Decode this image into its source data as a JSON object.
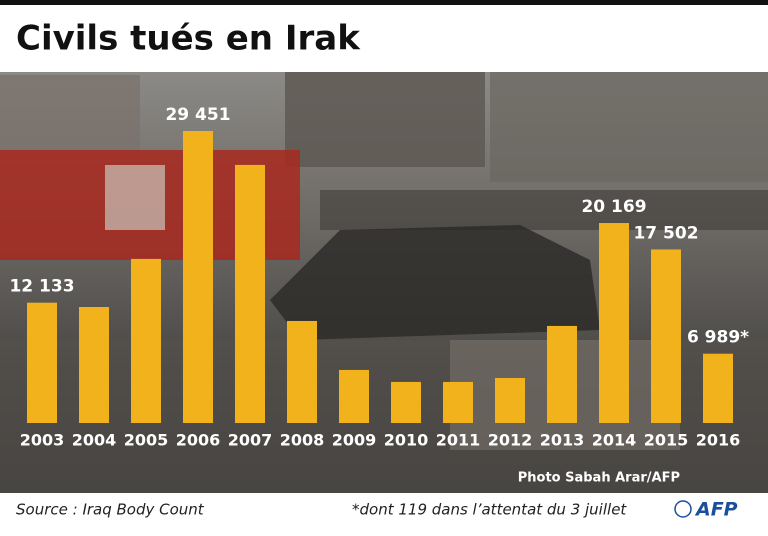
{
  "chart_data": {
    "type": "bar",
    "title": "Civils tués en Irak",
    "categories": [
      "2003",
      "2004",
      "2005",
      "2006",
      "2007",
      "2008",
      "2009",
      "2010",
      "2011",
      "2012",
      "2013",
      "2014",
      "2015",
      "2016"
    ],
    "values": [
      12133,
      11700,
      16550,
      29451,
      26030,
      10290,
      5350,
      4140,
      4140,
      4540,
      9790,
      20169,
      17502,
      6989
    ],
    "value_labels": [
      "12 133",
      null,
      null,
      "29 451",
      null,
      null,
      null,
      null,
      null,
      null,
      null,
      "20 169",
      "17 502",
      "6 989*"
    ],
    "color": "#f2b21b",
    "photo_credit": "Photo Sabah Arar/AFP",
    "source": "Source : Iraq Body Count",
    "footnote": "*dont 119 dans l’attentat du 3 juillet",
    "logo": "AFP"
  }
}
